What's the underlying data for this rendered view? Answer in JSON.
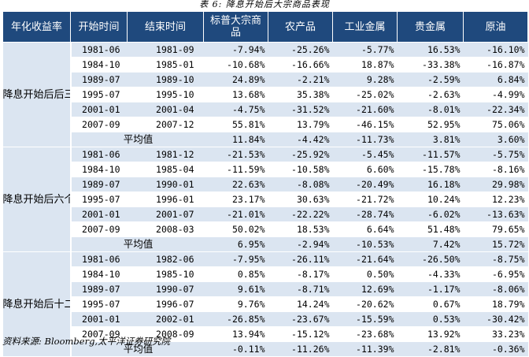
{
  "caption": "表 6: 降息开始后大宗商品表现",
  "headers": [
    "年化收益率",
    "开始时间",
    "结束时间",
    "标普大宗商品",
    "农产品",
    "工业金属",
    "贵金属",
    "原油"
  ],
  "groups": [
    {
      "label": "降息开始后后三个月",
      "rows": [
        [
          "1981-06",
          "1981-09",
          "-7.94%",
          "-25.26%",
          "-5.77%",
          "16.53%",
          "-16.10%"
        ],
        [
          "1984-10",
          "1985-01",
          "-10.68%",
          "-16.66%",
          "18.87%",
          "-33.38%",
          "-16.87%"
        ],
        [
          "1989-07",
          "1989-10",
          "24.89%",
          "-2.21%",
          "9.28%",
          "-2.59%",
          "6.84%"
        ],
        [
          "1995-07",
          "1995-10",
          "13.68%",
          "35.38%",
          "-25.02%",
          "-2.63%",
          "-4.99%"
        ],
        [
          "2001-01",
          "2001-04",
          "-4.75%",
          "-31.52%",
          "-21.60%",
          "-8.01%",
          "-22.34%"
        ],
        [
          "2007-09",
          "2007-12",
          "55.81%",
          "13.79%",
          "-46.15%",
          "52.95%",
          "75.06%"
        ]
      ],
      "average_label": "平均值",
      "average": [
        "11.84%",
        "-4.42%",
        "-11.73%",
        "3.81%",
        "3.60%"
      ]
    },
    {
      "label": "降息开始后六个月",
      "rows": [
        [
          "1981-06",
          "1981-12",
          "-21.53%",
          "-25.92%",
          "-5.45%",
          "-11.57%",
          "-5.75%"
        ],
        [
          "1984-10",
          "1985-04",
          "-11.59%",
          "-10.58%",
          "6.60%",
          "-15.78%",
          "-8.16%"
        ],
        [
          "1989-07",
          "1990-01",
          "22.63%",
          "-8.08%",
          "-20.49%",
          "16.18%",
          "29.98%"
        ],
        [
          "1995-07",
          "1996-01",
          "23.17%",
          "30.63%",
          "-21.72%",
          "10.24%",
          "12.23%"
        ],
        [
          "2001-01",
          "2001-07",
          "-21.01%",
          "-22.22%",
          "-28.74%",
          "-6.02%",
          "-13.63%"
        ],
        [
          "2007-09",
          "2008-03",
          "50.02%",
          "18.53%",
          "6.64%",
          "51.48%",
          "79.65%"
        ]
      ],
      "average_label": "平均值",
      "average": [
        "6.95%",
        "-2.94%",
        "-10.53%",
        "7.42%",
        "15.72%"
      ]
    },
    {
      "label": "降息开始后十二个月",
      "rows": [
        [
          "1981-06",
          "1982-06",
          "-7.95%",
          "-26.11%",
          "-21.64%",
          "-26.50%",
          "-8.75%"
        ],
        [
          "1984-10",
          "1985-10",
          "0.85%",
          "-8.17%",
          "0.50%",
          "-4.33%",
          "-6.95%"
        ],
        [
          "1989-07",
          "1990-07",
          "9.61%",
          "-8.71%",
          "12.69%",
          "-1.17%",
          "-8.06%"
        ],
        [
          "1995-07",
          "1996-07",
          "9.76%",
          "14.24%",
          "-20.62%",
          "0.67%",
          "18.79%"
        ],
        [
          "2001-01",
          "2002-01",
          "-26.85%",
          "-23.67%",
          "-15.59%",
          "0.53%",
          "-30.42%"
        ],
        [
          "2007-09",
          "2008-09",
          "13.94%",
          "-15.12%",
          "-23.68%",
          "13.92%",
          "33.23%"
        ]
      ],
      "average_label": "平均值",
      "average": [
        "-0.11%",
        "-11.26%",
        "-11.39%",
        "-2.81%",
        "-0.36%"
      ]
    }
  ],
  "source": "资料来源: Bloomberg,太平洋证券研究院",
  "colors": {
    "header_bg": "#1f497d",
    "stripe": "#dbe5f1",
    "period_bg": "#d3dfee"
  }
}
